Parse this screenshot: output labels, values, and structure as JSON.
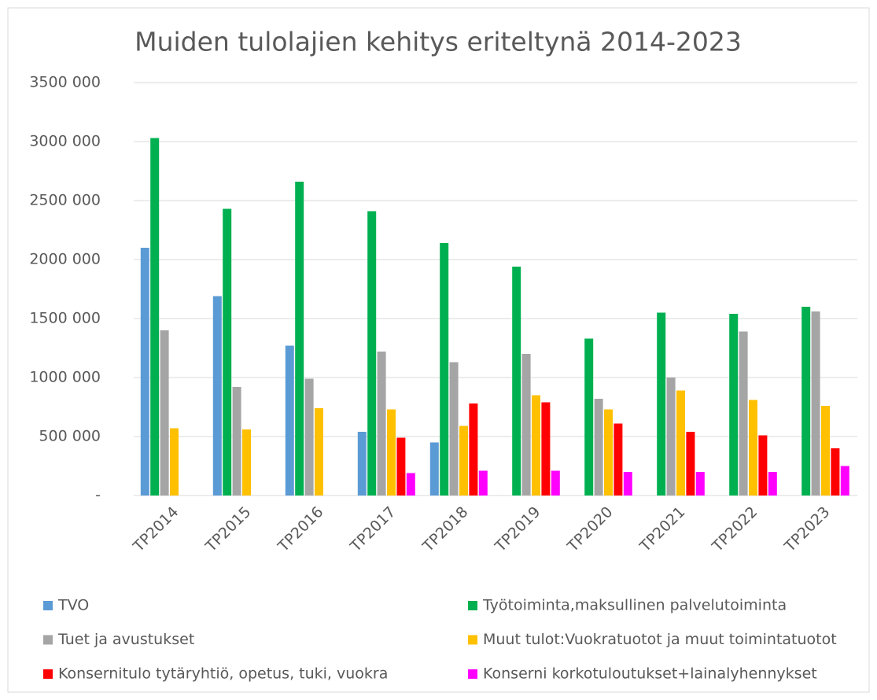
{
  "chart_data": {
    "type": "bar",
    "title": "Muiden tulolajien kehitys eriteltynä 2014-2023",
    "categories": [
      "TP2014",
      "TP2015",
      "TP2016",
      "TP2017",
      "TP2018",
      "TP2019",
      "TP2020",
      "TP2021",
      "TP2022",
      "TP2023"
    ],
    "series": [
      {
        "name": "TVO",
        "color": "#5b9bd5",
        "values": [
          2100000,
          1690000,
          1270000,
          540000,
          450000,
          null,
          null,
          null,
          null,
          null
        ]
      },
      {
        "name": "Työtoiminta,maksullinen palvelutoiminta",
        "color": "#00b050",
        "values": [
          3030000,
          2430000,
          2660000,
          2410000,
          2140000,
          1940000,
          1330000,
          1550000,
          1540000,
          1600000
        ]
      },
      {
        "name": "Tuet ja avustukset",
        "color": "#a5a5a5",
        "values": [
          1400000,
          920000,
          990000,
          1220000,
          1130000,
          1200000,
          820000,
          1000000,
          1390000,
          1560000
        ]
      },
      {
        "name": "Muut tulot:Vuokratuotot ja muut toimintatuotot",
        "color": "#ffc000",
        "values": [
          570000,
          560000,
          740000,
          730000,
          590000,
          850000,
          730000,
          890000,
          810000,
          760000
        ]
      },
      {
        "name": "Konsernitulo tytäryhtiö, opetus, tuki, vuokra",
        "color": "#ff0000",
        "values": [
          null,
          null,
          null,
          490000,
          780000,
          790000,
          610000,
          540000,
          510000,
          400000
        ]
      },
      {
        "name": "Konserni korkotuloutukset+lainalyhennykset",
        "color": "#ff00ff",
        "values": [
          null,
          null,
          null,
          190000,
          210000,
          210000,
          200000,
          200000,
          200000,
          250000
        ]
      }
    ],
    "ylim": [
      0,
      3500000
    ],
    "yticks": [
      {
        "value": 0,
        "label": "-"
      },
      {
        "value": 500000,
        "label": "500 000"
      },
      {
        "value": 1000000,
        "label": "1000 000"
      },
      {
        "value": 1500000,
        "label": "1500 000"
      },
      {
        "value": 2000000,
        "label": "2000 000"
      },
      {
        "value": 2500000,
        "label": "2500 000"
      },
      {
        "value": 3000000,
        "label": "3000 000"
      },
      {
        "value": 3500000,
        "label": "3500 000"
      }
    ],
    "grid": true,
    "legend": "bottom"
  }
}
